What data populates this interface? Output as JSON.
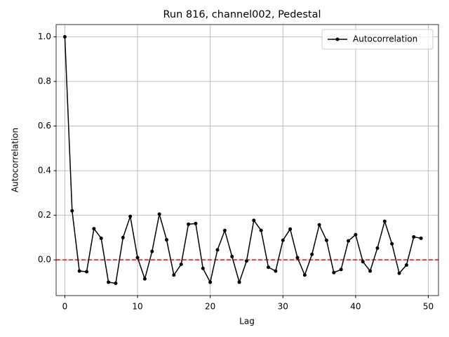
{
  "chart_data": {
    "type": "line",
    "title": "Run 816, channel002, Pedestal",
    "x_label": "Lag",
    "y_label": "Autocorrelation",
    "x": [
      0,
      1,
      2,
      3,
      4,
      5,
      6,
      7,
      8,
      9,
      10,
      11,
      12,
      13,
      14,
      15,
      16,
      17,
      18,
      19,
      20,
      21,
      22,
      23,
      24,
      25,
      26,
      27,
      28,
      29,
      30,
      31,
      32,
      33,
      34,
      35,
      36,
      37,
      38,
      39,
      40,
      41,
      42,
      43,
      44,
      45,
      46,
      47,
      48,
      49
    ],
    "series": [
      {
        "name": "Autocorrelation",
        "color": "#000000",
        "values": [
          1.0,
          0.22,
          -0.05,
          -0.053,
          0.14,
          0.097,
          -0.1,
          -0.105,
          0.1,
          0.195,
          0.01,
          -0.085,
          0.038,
          0.205,
          0.09,
          -0.068,
          -0.02,
          0.16,
          0.163,
          -0.038,
          -0.1,
          0.045,
          0.132,
          0.015,
          -0.1,
          -0.005,
          0.177,
          0.132,
          -0.033,
          -0.05,
          0.088,
          0.138,
          0.01,
          -0.068,
          0.025,
          0.157,
          0.088,
          -0.057,
          -0.043,
          0.085,
          0.113,
          -0.008,
          -0.05,
          0.053,
          0.173,
          0.072,
          -0.06,
          -0.023,
          0.103,
          0.097
        ]
      }
    ],
    "hline": {
      "value": 0,
      "color": "#ff0000"
    },
    "xlim": [
      -1.2,
      51.4
    ],
    "xticks": [
      0,
      10,
      20,
      30,
      40,
      50
    ],
    "ylim": [
      -0.16,
      1.055
    ],
    "yticks": [
      {
        "value": 0,
        "label": "0.0"
      },
      0.2,
      0.4,
      0.6,
      0.8,
      {
        "value": 1,
        "label": "1.0"
      }
    ],
    "grid": true,
    "legend": "upper right"
  }
}
